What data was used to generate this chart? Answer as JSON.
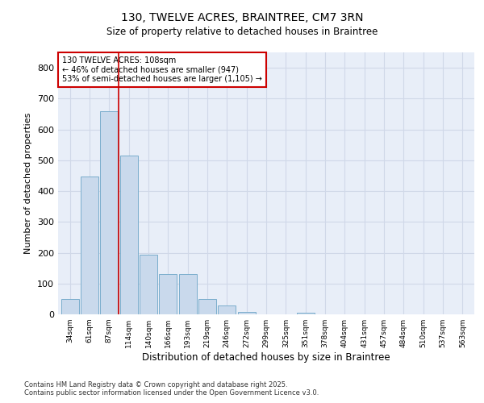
{
  "title_line1": "130, TWELVE ACRES, BRAINTREE, CM7 3RN",
  "title_line2": "Size of property relative to detached houses in Braintree",
  "xlabel": "Distribution of detached houses by size in Braintree",
  "ylabel": "Number of detached properties",
  "categories": [
    "34sqm",
    "61sqm",
    "87sqm",
    "114sqm",
    "140sqm",
    "166sqm",
    "193sqm",
    "219sqm",
    "246sqm",
    "272sqm",
    "299sqm",
    "325sqm",
    "351sqm",
    "378sqm",
    "404sqm",
    "431sqm",
    "457sqm",
    "484sqm",
    "510sqm",
    "537sqm",
    "563sqm"
  ],
  "values": [
    50,
    447,
    660,
    515,
    193,
    130,
    130,
    50,
    28,
    8,
    0,
    0,
    5,
    0,
    0,
    0,
    0,
    0,
    0,
    0,
    0
  ],
  "bar_color": "#c9d9ec",
  "bar_edge_color": "#7aadcc",
  "grid_color": "#d0d8e8",
  "bg_color": "#e8eef8",
  "vline_x": 2.5,
  "vline_color": "#cc0000",
  "annotation_text": "130 TWELVE ACRES: 108sqm\n← 46% of detached houses are smaller (947)\n53% of semi-detached houses are larger (1,105) →",
  "annotation_box_color": "#cc0000",
  "ylim": [
    0,
    850
  ],
  "yticks": [
    0,
    100,
    200,
    300,
    400,
    500,
    600,
    700,
    800
  ],
  "footnote_line1": "Contains HM Land Registry data © Crown copyright and database right 2025.",
  "footnote_line2": "Contains public sector information licensed under the Open Government Licence v3.0."
}
